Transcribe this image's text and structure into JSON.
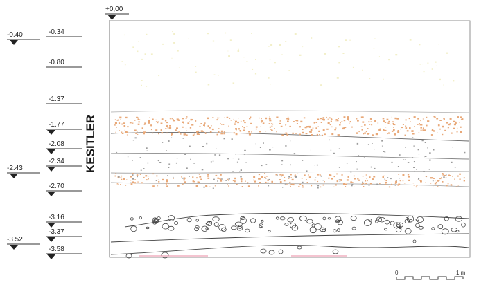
{
  "title": "KESITLER",
  "top_datum": "+0,00",
  "levels_left": [
    "-0.40",
    "-2.43",
    "-3.52"
  ],
  "levels_right": [
    "-0.34",
    "-0.80",
    "-1.37",
    "-1.77",
    "-2.08",
    "-2.34",
    "-2.70",
    "-3.16",
    "-3.37",
    "-3.58"
  ],
  "scale_bar": {
    "start": "0",
    "end": "1 m"
  },
  "colors": {
    "line": "#444444",
    "orange_fill": "#e8a878",
    "pale_yellow": "#f2efc8",
    "gray_stone": "#9a9a9a",
    "pink_line": "#e88aa0"
  }
}
